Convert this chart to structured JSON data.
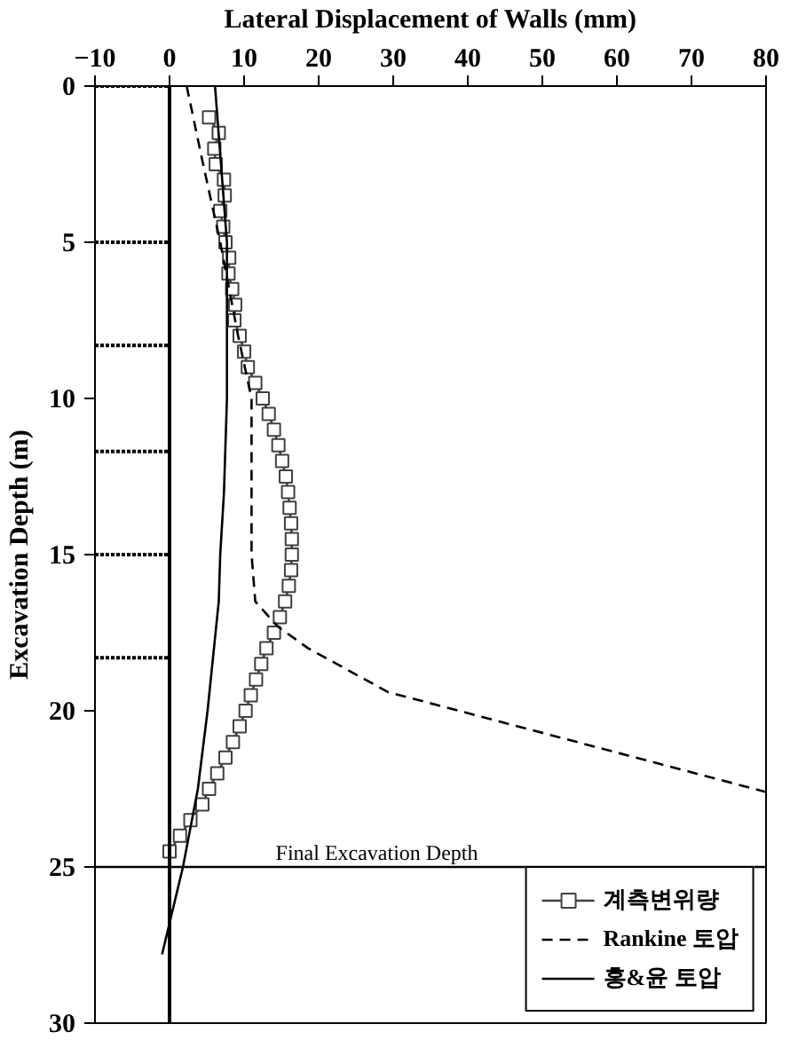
{
  "chart_data": {
    "type": "line",
    "xlabel": "Lateral Displacement of Walls (mm)",
    "ylabel": "Excavation Depth (m)",
    "xlim": [
      -10,
      80
    ],
    "xticks": [
      -10,
      0,
      10,
      20,
      30,
      40,
      50,
      60,
      70,
      80
    ],
    "ylim": [
      30,
      0
    ],
    "yticks": [
      0,
      5,
      10,
      15,
      20,
      25,
      30
    ],
    "grid": false,
    "legend": "bottom right",
    "ref_lines": [
      {
        "axis": "x",
        "value": 0,
        "color": "#000000"
      },
      {
        "axis": "y",
        "value": 25,
        "label": "Final Excavation Depth",
        "color": "#000000"
      }
    ],
    "series": [
      {
        "name": "계측변위량",
        "color": "#404040",
        "marker": "square",
        "line_style": "solid",
        "x": [
          5.3,
          6.6,
          6.0,
          6.2,
          7.3,
          7.4,
          6.8,
          7.2,
          7.5,
          8.0,
          7.9,
          8.4,
          8.8,
          8.7,
          9.4,
          10.0,
          10.5,
          11.5,
          12.5,
          13.3,
          14.0,
          14.6,
          15.1,
          15.6,
          15.9,
          16.1,
          16.3,
          16.4,
          16.4,
          16.3,
          16.0,
          15.5,
          14.8,
          14.0,
          13.0,
          12.3,
          11.6,
          10.9,
          10.2,
          9.4,
          8.5,
          7.5,
          6.4,
          5.3,
          4.4,
          2.8,
          1.4,
          0.0
        ],
        "values": [
          1.0,
          1.5,
          2.0,
          2.5,
          3.0,
          3.5,
          4.0,
          4.5,
          5.0,
          5.5,
          6.0,
          6.5,
          7.0,
          7.5,
          8.0,
          8.5,
          9.0,
          9.5,
          10.0,
          10.5,
          11.0,
          11.5,
          12.0,
          12.5,
          13.0,
          13.5,
          14.0,
          14.5,
          15.0,
          15.5,
          16.0,
          16.5,
          17.0,
          17.5,
          18.0,
          18.5,
          19.0,
          19.5,
          20.0,
          20.5,
          21.0,
          21.5,
          22.0,
          22.5,
          23.0,
          23.5,
          24.0,
          24.5
        ]
      },
      {
        "name": "Rankine 토압",
        "color": "#000000",
        "marker": "none",
        "line_style": "dashed",
        "x": [
          2.3,
          4.5,
          6.8,
          9.2,
          11.0,
          11.0,
          11.0,
          11.5,
          14.5,
          18.6,
          29.3,
          80
        ],
        "values": [
          0,
          2.5,
          5,
          8,
          10,
          12.5,
          15,
          16.5,
          17.3,
          18.0,
          19.4,
          22.6
        ]
      },
      {
        "name": "홍&윤 토압",
        "color": "#000000",
        "marker": "none",
        "line_style": "solid",
        "x": [
          6.1,
          7.7,
          7.7,
          7.3,
          6.8,
          6.6,
          5.1,
          3.8,
          1.8,
          -1.0
        ],
        "values": [
          0,
          5,
          10,
          13,
          15,
          16.5,
          20,
          22.5,
          25,
          27.8
        ]
      },
      {
        "color": "#000000",
        "marker": "none",
        "line_style": "dotted",
        "x": [
          -10,
          0
        ],
        "values": [
          0,
          0
        ]
      },
      {
        "color": "#000000",
        "marker": "none",
        "line_style": "dotted",
        "x": [
          -10,
          0
        ],
        "values": [
          5,
          5
        ]
      },
      {
        "color": "#000000",
        "marker": "none",
        "line_style": "dotted",
        "x": [
          -10,
          0
        ],
        "values": [
          8.3,
          8.3
        ]
      },
      {
        "color": "#000000",
        "marker": "none",
        "line_style": "dotted",
        "x": [
          -10,
          0
        ],
        "values": [
          11.7,
          11.7
        ]
      },
      {
        "color": "#000000",
        "marker": "none",
        "line_style": "dotted",
        "x": [
          -10,
          0
        ],
        "values": [
          15,
          15
        ]
      },
      {
        "color": "#000000",
        "marker": "none",
        "line_style": "dotted",
        "x": [
          -10,
          0
        ],
        "values": [
          18.3,
          18.3
        ]
      }
    ]
  }
}
